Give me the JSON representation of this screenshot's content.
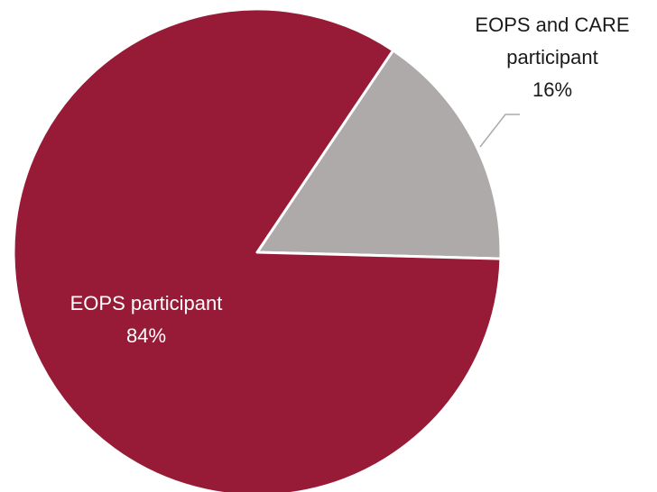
{
  "chart_data": {
    "type": "pie",
    "title": "",
    "slices": [
      {
        "label": "EOPS and CARE participant",
        "label_lines": [
          "EOPS and CARE",
          "participant"
        ],
        "value": 16,
        "value_label": "16%",
        "color": "#aeaaaa"
      },
      {
        "label": "EOPS participant",
        "label_lines": [
          "EOPS participant"
        ],
        "value": 84,
        "value_label": "84%",
        "color": "#971b36"
      }
    ],
    "slice_border_color": "#ffffff",
    "leader_line_color": "#aeaaaa",
    "legend": "none"
  }
}
